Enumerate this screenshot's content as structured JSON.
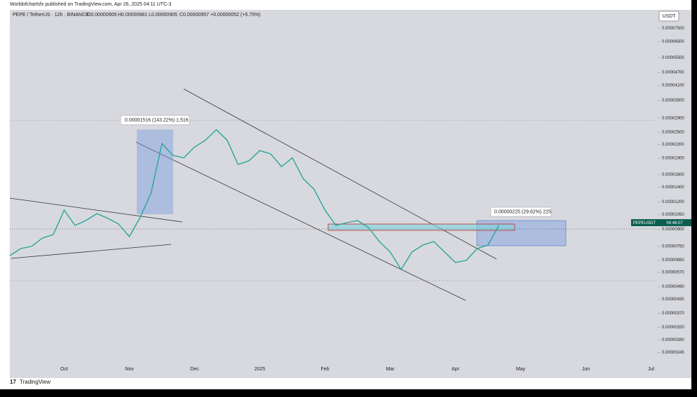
{
  "page": {
    "publisher_line": "Worldofchartsfx published on TradingView.com, Apr 26, 2025 04:11 UTC-3",
    "symbol": "PEPE / TetherUS · 12h · BINANCE",
    "ohlc": [
      "O0.00000905",
      "H0.00000981",
      "L0.00000905",
      "C0.00000957",
      "+0.00000052 (+5.75%)"
    ],
    "currency_button": "USDT",
    "price_tag": "PEPEUSDT",
    "countdown": "04:48:07",
    "logo": "TradingView"
  },
  "chart_data": {
    "type": "line",
    "log_scale": true,
    "grid": false,
    "color": "#26a69a",
    "categories": [
      null,
      null,
      null,
      null,
      null,
      "Oct",
      null,
      null,
      null,
      null,
      null,
      "Nov",
      null,
      null,
      null,
      null,
      null,
      "Dec",
      null,
      null,
      null,
      null,
      null,
      "2025",
      null,
      null,
      null,
      null,
      null,
      "Feb",
      null,
      null,
      null,
      null,
      null,
      "Mar",
      null,
      null,
      null,
      null,
      null,
      "Apr",
      null,
      null,
      null,
      null,
      null,
      "May",
      null,
      null,
      null,
      null,
      null,
      "Jun",
      null,
      null,
      null,
      null,
      null,
      "Jul"
    ],
    "values": [
      6.81e-06,
      7.33e-06,
      7.5e-06,
      8.19e-06,
      8.5e-06,
      1.1e-05,
      9.36e-06,
      9.85e-06,
      1.06e-05,
      1.01e-05,
      9.5e-06,
      8.32e-06,
      1.02e-05,
      1.32e-05,
      2.22e-05,
      1.96e-05,
      1.91e-05,
      2.14e-05,
      2.3e-05,
      2.57e-05,
      2.3e-05,
      1.78e-05,
      1.85e-05,
      2.06e-05,
      1.99e-05,
      1.74e-05,
      1.91e-05,
      1.53e-05,
      1.37e-05,
      1.1e-05,
      9.36e-06,
      9.64e-06,
      9.85e-06,
      9.15e-06,
      7.9e-06,
      7.07e-06,
      5.88e-06,
      7.07e-06,
      7.61e-06,
      7.9e-06,
      7.07e-06,
      6.33e-06,
      6.47e-06,
      7.33e-06,
      7.61e-06,
      9.36e-06,
      null,
      null,
      null,
      null,
      null,
      null,
      null,
      null,
      null,
      null,
      null,
      null,
      null,
      null
    ],
    "ylim": [
      2.2e-06,
      9.1e-05
    ],
    "yticks": [
      {
        "value": 7.5e-05,
        "label": "0.00007500"
      },
      {
        "value": 6.5e-05,
        "label": "0.00006500"
      },
      {
        "value": 5.5e-05,
        "label": "0.00005500"
      },
      {
        "value": 4.7e-05,
        "label": "0.00004700"
      },
      {
        "value": 4.1e-05,
        "label": "0.00004100"
      },
      {
        "value": 3.5e-05,
        "label": "0.00003500"
      },
      {
        "value": 2.9e-05,
        "label": "0.00002900"
      },
      {
        "value": 2.5e-05,
        "label": "0.00002500"
      },
      {
        "value": 2.2e-05,
        "label": "0.00002200"
      },
      {
        "value": 1.9e-05,
        "label": "0.00001900"
      },
      {
        "value": 1.6e-05,
        "label": "0.00001600"
      },
      {
        "value": 1.4e-05,
        "label": "0.00001400"
      },
      {
        "value": 1.2e-05,
        "label": "0.00001200"
      },
      {
        "value": 1.05e-05,
        "label": "0.00001050"
      },
      {
        "value": 9e-06,
        "label": "0.00000900"
      },
      {
        "value": 7.5e-06,
        "label": "0.00000750"
      },
      {
        "value": 6.5e-06,
        "label": "0.00000650"
      },
      {
        "value": 5.7e-06,
        "label": "0.00000570"
      },
      {
        "value": 4.9e-06,
        "label": "0.00000490"
      },
      {
        "value": 4.3e-06,
        "label": "0.00000430"
      },
      {
        "value": 3.7e-06,
        "label": "0.00000370"
      },
      {
        "value": 3.2e-06,
        "label": "0.00000320"
      },
      {
        "value": 2.8e-06,
        "label": "0.00000280"
      },
      {
        "value": 2.45e-06,
        "label": "0.00000245"
      }
    ],
    "annotations": [
      "0.00001516 (143.22%) 1,516",
      "0.00000225 (29.62%) 225"
    ]
  }
}
